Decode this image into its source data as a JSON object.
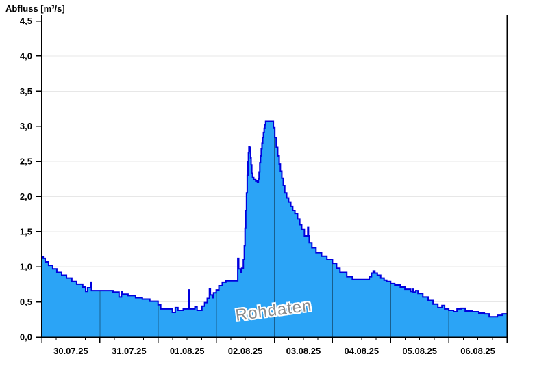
{
  "chart": {
    "title": "Abfluss [m³/s]",
    "watermark": "Rohdaten"
  },
  "chart_data": {
    "type": "area",
    "title": "Abfluss [m³/s]",
    "ylabel": "Abfluss [m³/s]",
    "xlabel": "",
    "ylim": [
      0,
      4.5
    ],
    "y_tick_step": 0.5,
    "y_tick_labels": [
      "0,0",
      "0,5",
      "1,0",
      "1,5",
      "2,0",
      "2,5",
      "3,0",
      "3,5",
      "4,0",
      "4,5"
    ],
    "x_tick_labels": [
      "30.07.25",
      "31.07.25",
      "01.08.25",
      "02.08.25",
      "03.08.25",
      "04.08.25",
      "05.08.25",
      "06.08.25"
    ],
    "x_range_hours": [
      0,
      192
    ],
    "x_minor_tick_hours": 6,
    "grid": {
      "horizontal": true,
      "vertical_day_lines_inside_area": true,
      "legend": "none"
    },
    "watermark": "Rohdaten",
    "colors": {
      "area_fill": "#2ba4f6",
      "area_line": "#0000dd",
      "h_grid": "#e7e7e7",
      "day_line_on_area": "rgba(0,0,0,0.42)",
      "axis": "#000000",
      "watermark_text": "#8c8c8c"
    },
    "series": [
      {
        "name": "Abfluss Rohdaten",
        "unit": "m³/s",
        "step": "after",
        "points": [
          [
            0,
            1.14
          ],
          [
            0.6,
            1.12
          ],
          [
            1.4,
            1.07
          ],
          [
            2.8,
            1.02
          ],
          [
            4.5,
            0.97
          ],
          [
            6.2,
            0.92
          ],
          [
            8.2,
            0.88
          ],
          [
            10.2,
            0.84
          ],
          [
            12.4,
            0.79
          ],
          [
            14.4,
            0.75
          ],
          [
            16.9,
            0.71
          ],
          [
            18.1,
            0.65
          ],
          [
            18.9,
            0.7
          ],
          [
            20.1,
            0.78
          ],
          [
            20.5,
            0.66
          ],
          [
            29.4,
            0.64
          ],
          [
            31.9,
            0.57
          ],
          [
            32.9,
            0.65
          ],
          [
            33.3,
            0.61
          ],
          [
            35.6,
            0.59
          ],
          [
            38.7,
            0.56
          ],
          [
            41.5,
            0.54
          ],
          [
            44.6,
            0.51
          ],
          [
            48,
            0.46
          ],
          [
            49.1,
            0.4
          ],
          [
            53.9,
            0.35
          ],
          [
            55.1,
            0.42
          ],
          [
            56.2,
            0.38
          ],
          [
            58.4,
            0.4
          ],
          [
            60.6,
            0.67
          ],
          [
            61,
            0.4
          ],
          [
            63.2,
            0.43
          ],
          [
            64.1,
            0.38
          ],
          [
            66.1,
            0.44
          ],
          [
            67.2,
            0.49
          ],
          [
            68.3,
            0.55
          ],
          [
            69.2,
            0.69
          ],
          [
            69.6,
            0.6
          ],
          [
            70.6,
            0.56
          ],
          [
            70.9,
            0.63
          ],
          [
            72,
            0.67
          ],
          [
            73.1,
            0.73
          ],
          [
            74.5,
            0.78
          ],
          [
            76,
            0.8
          ],
          [
            80.9,
            1.12
          ],
          [
            81.3,
            0.97
          ],
          [
            82.2,
            0.92
          ],
          [
            82.5,
            0.98
          ],
          [
            83.2,
            1.1
          ],
          [
            83.6,
            1.3
          ],
          [
            83.9,
            1.55
          ],
          [
            84.2,
            1.8
          ],
          [
            84.5,
            2.05
          ],
          [
            84.8,
            2.3
          ],
          [
            85.1,
            2.5
          ],
          [
            85.3,
            2.62
          ],
          [
            85.5,
            2.71
          ],
          [
            85.8,
            2.64
          ],
          [
            86,
            2.7
          ],
          [
            86.2,
            2.55
          ],
          [
            86.4,
            2.45
          ],
          [
            86.7,
            2.33
          ],
          [
            87,
            2.27
          ],
          [
            87.5,
            2.24
          ],
          [
            88.3,
            2.22
          ],
          [
            89,
            2.2
          ],
          [
            89.4,
            2.25
          ],
          [
            89.7,
            2.35
          ],
          [
            90,
            2.48
          ],
          [
            90.3,
            2.58
          ],
          [
            90.6,
            2.68
          ],
          [
            90.9,
            2.76
          ],
          [
            91.2,
            2.84
          ],
          [
            91.5,
            2.91
          ],
          [
            91.8,
            2.97
          ],
          [
            92.1,
            3.02
          ],
          [
            92.4,
            3.07
          ],
          [
            95.6,
            2.98
          ],
          [
            96.2,
            2.84
          ],
          [
            96.8,
            2.7
          ],
          [
            97.4,
            2.58
          ],
          [
            98,
            2.46
          ],
          [
            98.5,
            2.36
          ],
          [
            99.1,
            2.26
          ],
          [
            99.7,
            2.16
          ],
          [
            100.3,
            2.05
          ],
          [
            101.1,
            1.98
          ],
          [
            101.9,
            1.92
          ],
          [
            102.8,
            1.86
          ],
          [
            103.6,
            1.8
          ],
          [
            104.5,
            1.76
          ],
          [
            105.6,
            1.68
          ],
          [
            106.5,
            1.6
          ],
          [
            107.3,
            1.53
          ],
          [
            108.4,
            1.44
          ],
          [
            109.8,
            1.56
          ],
          [
            110.1,
            1.44
          ],
          [
            110.4,
            1.34
          ],
          [
            111.5,
            1.27
          ],
          [
            113.2,
            1.2
          ],
          [
            115.5,
            1.15
          ],
          [
            117.7,
            1.1
          ],
          [
            120,
            1.05
          ],
          [
            121.7,
            0.98
          ],
          [
            123.1,
            0.92
          ],
          [
            125.9,
            0.86
          ],
          [
            128.2,
            0.82
          ],
          [
            135.2,
            0.86
          ],
          [
            136.1,
            0.91
          ],
          [
            136.8,
            0.94
          ],
          [
            137,
            0.91
          ],
          [
            137.3,
            0.94
          ],
          [
            137.5,
            0.91
          ],
          [
            138.5,
            0.88
          ],
          [
            139.9,
            0.84
          ],
          [
            141.3,
            0.81
          ],
          [
            142.4,
            0.79
          ],
          [
            144,
            0.76
          ],
          [
            145.7,
            0.74
          ],
          [
            148,
            0.71
          ],
          [
            149.9,
            0.68
          ],
          [
            152.2,
            0.65
          ],
          [
            152.9,
            0.68
          ],
          [
            153.3,
            0.64
          ],
          [
            154.4,
            0.66
          ],
          [
            155.3,
            0.62
          ],
          [
            157.3,
            0.57
          ],
          [
            159.5,
            0.52
          ],
          [
            161.5,
            0.47
          ],
          [
            163.5,
            0.42
          ],
          [
            165.2,
            0.45
          ],
          [
            166.3,
            0.4
          ],
          [
            168,
            0.38
          ],
          [
            170,
            0.36
          ],
          [
            171.4,
            0.4
          ],
          [
            173.1,
            0.41
          ],
          [
            174.8,
            0.37
          ],
          [
            177.6,
            0.36
          ],
          [
            180.4,
            0.34
          ],
          [
            182.7,
            0.33
          ],
          [
            184.7,
            0.29
          ],
          [
            188.1,
            0.31
          ],
          [
            190.1,
            0.33
          ],
          [
            192,
            0.33
          ]
        ]
      }
    ]
  }
}
